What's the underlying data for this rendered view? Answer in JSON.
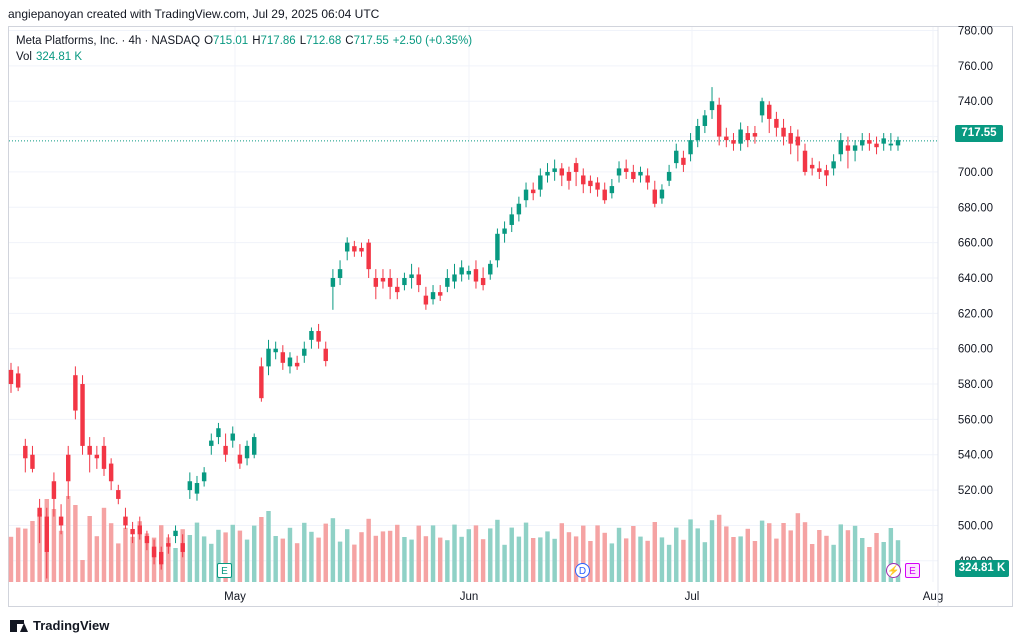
{
  "header": {
    "caption": "angiepanoyan created with TradingView.com, Jul 29, 2025 06:04 UTC"
  },
  "legend": {
    "symbol": "Meta Platforms, Inc. · 4h · NASDAQ",
    "o_label": "O",
    "o_value": "715.01",
    "h_label": "H",
    "h_value": "717.86",
    "l_label": "L",
    "l_value": "712.68",
    "c_label": "C",
    "c_value": "717.55",
    "change": "+2.50 (+0.35%)",
    "vol_label": "Vol",
    "vol_value": "324.81 K"
  },
  "price_tag": "717.55",
  "vol_tag": "324.81 K",
  "badges": {
    "earnings": "E",
    "dividend": "D",
    "earnings_upcoming": "E"
  },
  "footer": {
    "brand": "TradingView"
  },
  "colors": {
    "up": "#089981",
    "down": "#f23645",
    "vol_up": "#8fd1c6",
    "vol_down": "#f5a3a3",
    "grid": "#f0f3fa"
  },
  "chart_data": {
    "type": "candlestick",
    "y_axis": {
      "ticks": [
        480,
        500,
        520,
        540,
        560,
        580,
        600,
        620,
        640,
        660,
        680,
        700,
        720,
        740,
        760,
        780
      ],
      "range": [
        468,
        782
      ]
    },
    "x_axis": {
      "labels": [
        "May",
        "Jun",
        "Jul",
        "Aug"
      ]
    },
    "last_price": 717.55,
    "candles": [
      [
        588,
        580,
        592,
        575
      ],
      [
        586,
        578,
        590,
        576
      ],
      [
        545,
        538,
        549,
        530
      ],
      [
        540,
        532,
        545,
        530
      ],
      [
        510,
        505,
        515,
        490
      ],
      [
        505,
        485,
        510,
        470
      ],
      [
        525,
        515,
        530,
        505
      ],
      [
        505,
        500,
        512,
        495
      ],
      [
        540,
        525,
        545,
        515
      ],
      [
        585,
        565,
        590,
        560
      ],
      [
        580,
        545,
        585,
        540
      ],
      [
        545,
        540,
        550,
        530
      ],
      [
        540,
        538,
        545,
        532
      ],
      [
        545,
        532,
        550,
        528
      ],
      [
        535,
        525,
        538,
        520
      ],
      [
        520,
        515,
        523,
        512
      ],
      [
        505,
        500,
        510,
        498
      ],
      [
        498,
        495,
        502,
        490
      ],
      [
        500,
        495,
        505,
        492
      ],
      [
        494,
        490,
        497,
        486
      ],
      [
        488,
        482,
        492,
        478
      ],
      [
        485,
        478,
        488,
        475
      ],
      [
        490,
        488,
        495,
        484
      ],
      [
        494,
        497,
        500,
        490
      ],
      [
        490,
        485,
        495,
        482
      ],
      [
        520,
        525,
        530,
        515
      ],
      [
        518,
        524,
        528,
        514
      ],
      [
        525,
        530,
        533,
        522
      ],
      [
        545,
        548,
        552,
        540
      ],
      [
        550,
        555,
        558,
        546
      ],
      [
        545,
        540,
        552,
        536
      ],
      [
        548,
        552,
        556,
        544
      ],
      [
        540,
        535,
        546,
        532
      ],
      [
        538,
        545,
        548,
        534
      ],
      [
        540,
        550,
        552,
        538
      ],
      [
        590,
        572,
        595,
        570
      ],
      [
        590,
        600,
        605,
        585
      ],
      [
        598,
        600,
        604,
        594
      ],
      [
        598,
        592,
        602,
        588
      ],
      [
        590,
        595,
        598,
        586
      ],
      [
        592,
        590,
        596,
        588
      ],
      [
        596,
        600,
        604,
        592
      ],
      [
        605,
        610,
        612,
        600
      ],
      [
        610,
        604,
        614,
        600
      ],
      [
        600,
        593,
        604,
        590
      ],
      [
        635,
        640,
        645,
        622
      ],
      [
        640,
        645,
        650,
        636
      ],
      [
        655,
        660,
        663,
        650
      ],
      [
        658,
        655,
        661,
        652
      ],
      [
        657,
        655,
        660,
        652
      ],
      [
        660,
        645,
        662,
        640
      ],
      [
        640,
        635,
        645,
        628
      ],
      [
        640,
        638,
        645,
        634
      ],
      [
        640,
        635,
        645,
        628
      ],
      [
        635,
        632,
        640,
        628
      ],
      [
        636,
        640,
        643,
        633
      ],
      [
        640,
        642,
        648,
        634
      ],
      [
        642,
        636,
        646,
        632
      ],
      [
        630,
        625,
        635,
        622
      ],
      [
        628,
        632,
        636,
        625
      ],
      [
        632,
        630,
        636,
        627
      ],
      [
        635,
        640,
        645,
        632
      ],
      [
        638,
        642,
        648,
        634
      ],
      [
        642,
        646,
        650,
        638
      ],
      [
        642,
        644,
        647,
        639
      ],
      [
        645,
        638,
        650,
        634
      ],
      [
        640,
        636,
        646,
        633
      ],
      [
        642,
        648,
        650,
        639
      ],
      [
        650,
        665,
        668,
        646
      ],
      [
        665,
        668,
        672,
        660
      ],
      [
        670,
        676,
        680,
        666
      ],
      [
        676,
        682,
        686,
        672
      ],
      [
        684,
        690,
        694,
        680
      ],
      [
        690,
        688,
        694,
        684
      ],
      [
        690,
        698,
        702,
        686
      ],
      [
        698,
        700,
        705,
        694
      ],
      [
        700,
        702,
        707,
        695
      ],
      [
        702,
        698,
        705,
        692
      ],
      [
        700,
        695,
        703,
        690
      ],
      [
        705,
        700,
        708,
        692
      ],
      [
        698,
        693,
        702,
        688
      ],
      [
        695,
        692,
        698,
        688
      ],
      [
        694,
        690,
        697,
        686
      ],
      [
        690,
        684,
        694,
        682
      ],
      [
        688,
        692,
        696,
        685
      ],
      [
        698,
        702,
        706,
        694
      ],
      [
        702,
        700,
        707,
        696
      ],
      [
        700,
        696,
        704,
        694
      ],
      [
        698,
        700,
        703,
        694
      ],
      [
        698,
        694,
        702,
        690
      ],
      [
        690,
        682,
        695,
        680
      ],
      [
        685,
        690,
        693,
        682
      ],
      [
        695,
        700,
        704,
        692
      ],
      [
        705,
        712,
        716,
        702
      ],
      [
        708,
        704,
        712,
        700
      ],
      [
        710,
        718,
        722,
        706
      ],
      [
        718,
        726,
        730,
        714
      ],
      [
        726,
        732,
        735,
        722
      ],
      [
        735,
        740,
        748,
        730
      ],
      [
        738,
        720,
        742,
        715
      ],
      [
        720,
        718,
        725,
        714
      ],
      [
        718,
        716,
        722,
        712
      ],
      [
        716,
        724,
        728,
        712
      ],
      [
        722,
        718,
        726,
        714
      ],
      [
        722,
        720,
        726,
        716
      ],
      [
        732,
        740,
        742,
        728
      ],
      [
        738,
        730,
        740,
        722
      ],
      [
        730,
        725,
        734,
        720
      ],
      [
        725,
        720,
        730,
        715
      ],
      [
        722,
        716,
        726,
        710
      ],
      [
        720,
        715,
        724,
        706
      ],
      [
        712,
        700,
        716,
        698
      ],
      [
        704,
        702,
        708,
        698
      ],
      [
        702,
        700,
        706,
        696
      ],
      [
        701,
        698,
        704,
        692
      ],
      [
        702,
        706,
        710,
        698
      ],
      [
        710,
        718,
        722,
        706
      ],
      [
        715,
        712,
        720,
        702
      ],
      [
        712,
        715,
        718,
        706
      ],
      [
        715,
        718,
        722,
        712
      ],
      [
        718,
        716,
        722,
        712
      ],
      [
        716,
        714,
        720,
        710
      ],
      [
        716,
        719,
        722,
        712
      ],
      [
        715,
        716,
        722,
        712
      ],
      [
        715,
        718,
        720,
        712
      ]
    ]
  }
}
